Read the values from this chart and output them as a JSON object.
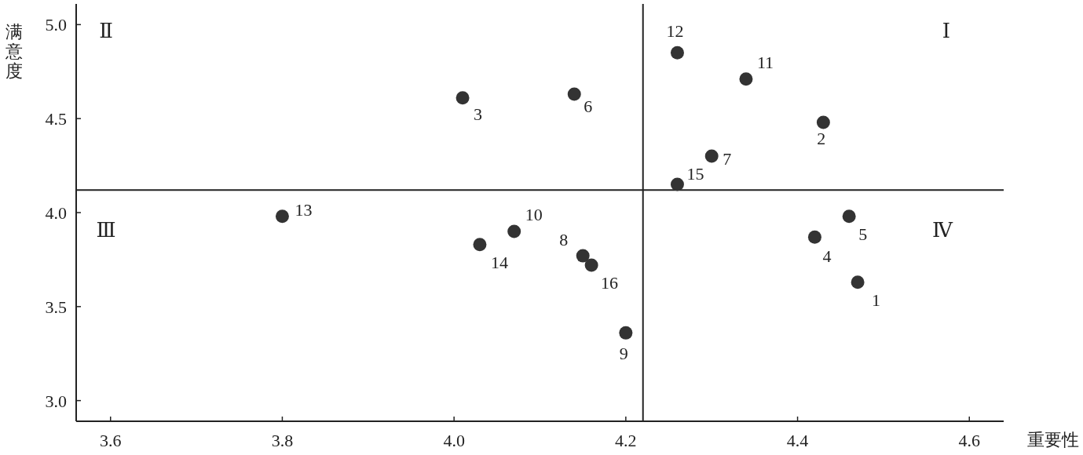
{
  "chart_data": {
    "type": "scatter",
    "xlabel": "重要性",
    "ylabel": "满意度",
    "x": [
      4.47,
      4.43,
      4.01,
      4.42,
      4.46,
      4.14,
      4.3,
      4.15,
      4.2,
      4.07,
      4.34,
      4.26,
      3.8,
      4.03,
      4.26,
      4.16
    ],
    "series": [
      {
        "color": "#333333",
        "values": [
          3.63,
          4.48,
          4.61,
          3.87,
          3.98,
          4.63,
          4.3,
          3.77,
          3.36,
          3.9,
          4.71,
          4.85,
          3.98,
          3.83,
          4.15,
          3.72
        ]
      }
    ],
    "marker": "circle",
    "grid": false,
    "xlim": [
      3.56,
      4.64
    ],
    "ylim": [
      2.89,
      5.11
    ],
    "xticks": [
      3.6,
      3.8,
      {
        "value": 4,
        "label": "4.0"
      },
      4.2,
      4.4,
      4.6
    ],
    "yticks": [
      {
        "value": 3,
        "label": "3.0"
      },
      3.5,
      {
        "value": 4,
        "label": "4.0"
      },
      4.5,
      {
        "value": 5,
        "label": "5.0"
      }
    ],
    "ref_lines": [
      {
        "axis": "x",
        "value": 4.22,
        "label": null
      },
      {
        "axis": "y",
        "value": 4.12,
        "label": null
      }
    ],
    "annotations": [
      {
        "text": "1",
        "x": 4.47,
        "y": 3.63
      },
      {
        "text": "2",
        "x": 4.43,
        "y": 4.48
      },
      {
        "text": "3",
        "x": 4.01,
        "y": 4.61
      },
      {
        "text": "4",
        "x": 4.42,
        "y": 3.87
      },
      {
        "text": "5",
        "x": 4.46,
        "y": 3.98
      },
      {
        "text": "6",
        "x": 4.14,
        "y": 4.63
      },
      {
        "text": "7",
        "x": 4.3,
        "y": 4.3
      },
      {
        "text": "8",
        "x": 4.15,
        "y": 3.77
      },
      {
        "text": "9",
        "x": 4.2,
        "y": 3.36
      },
      {
        "text": "10",
        "x": 4.07,
        "y": 3.9
      },
      {
        "text": "11",
        "x": 4.34,
        "y": 4.71
      },
      {
        "text": "12",
        "x": 4.26,
        "y": 4.85
      },
      {
        "text": "13",
        "x": 3.8,
        "y": 3.98
      },
      {
        "text": "14",
        "x": 4.03,
        "y": 3.83
      },
      {
        "text": "15",
        "x": 4.26,
        "y": 4.15
      },
      {
        "text": "16",
        "x": 4.16,
        "y": 3.72
      },
      "Ⅰ",
      "Ⅱ",
      "Ⅲ",
      "Ⅳ"
    ]
  }
}
